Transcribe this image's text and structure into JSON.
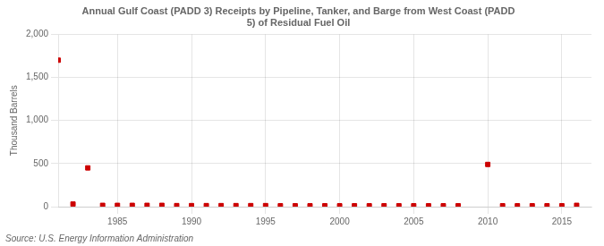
{
  "chart_data": {
    "type": "scatter",
    "title": "Annual Gulf Coast (PADD 3) Receipts by Pipeline, Tanker, and Barge from West Coast (PADD\n5) of Residual Fuel Oil",
    "ylabel": "Thousand Barrels",
    "annotations": [
      "Source: U.S. Energy Information Administration"
    ],
    "color": "#cc0000",
    "marker": "square",
    "grid": true,
    "xlim": [
      1981,
      2017
    ],
    "xticks": [
      1985,
      1990,
      1995,
      2000,
      2005,
      2010,
      2015
    ],
    "ylim": [
      0,
      2000
    ],
    "yticks": [
      0,
      500,
      {
        "value": 1000,
        "label": "1,000"
      },
      {
        "value": 1500,
        "label": "1,500"
      },
      {
        "value": 2000,
        "label": "2,000"
      }
    ],
    "x": [
      1981,
      1982,
      1983,
      1984,
      1985,
      1986,
      1987,
      1988,
      1989,
      1990,
      1991,
      1992,
      1993,
      1994,
      1995,
      1996,
      1997,
      1998,
      1999,
      2000,
      2001,
      2002,
      2003,
      2004,
      2005,
      2006,
      2007,
      2008,
      2010,
      2011,
      2012,
      2013,
      2014,
      2015,
      2016
    ],
    "values": [
      1700,
      30,
      450,
      15,
      15,
      15,
      15,
      15,
      12,
      12,
      12,
      12,
      12,
      12,
      12,
      10,
      10,
      10,
      10,
      10,
      10,
      10,
      10,
      10,
      10,
      10,
      10,
      10,
      490,
      10,
      10,
      10,
      10,
      10,
      15
    ]
  }
}
